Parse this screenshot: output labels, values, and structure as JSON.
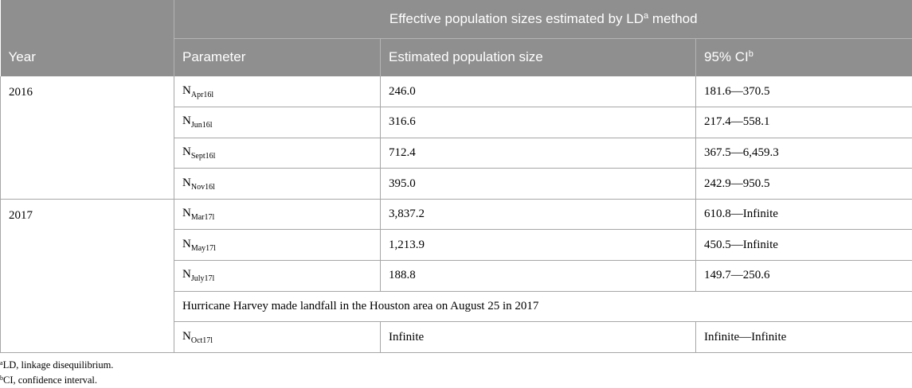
{
  "table": {
    "super_header": {
      "text": "Effective population sizes estimated by LD",
      "sup": "a",
      "suffix": " method"
    },
    "columns": {
      "year": "Year",
      "parameter": "Parameter",
      "estimated": "Estimated population size",
      "ci": "95% CI",
      "ci_sup": "b"
    },
    "groups": [
      {
        "year": "2016",
        "rows": [
          {
            "param_base": "N",
            "param_sub": "Apr16l",
            "estimate": "246.0",
            "ci": "181.6—370.5"
          },
          {
            "param_base": "N",
            "param_sub": "Jun16l",
            "estimate": "316.6",
            "ci": "217.4—558.1"
          },
          {
            "param_base": "N",
            "param_sub": "Sept16l",
            "estimate": "712.4",
            "ci": "367.5—6,459.3"
          },
          {
            "param_base": "N",
            "param_sub": "Nov16l",
            "estimate": "395.0",
            "ci": "242.9—950.5"
          }
        ]
      },
      {
        "year": "2017",
        "rows": [
          {
            "param_base": "N",
            "param_sub": "Mar17l",
            "estimate": "3,837.2",
            "ci": "610.8—Infinite"
          },
          {
            "param_base": "N",
            "param_sub": "May17l",
            "estimate": "1,213.9",
            "ci": "450.5—Infinite"
          },
          {
            "param_base": "N",
            "param_sub": "July17l",
            "estimate": "188.8",
            "ci": "149.7—250.6"
          }
        ],
        "note": "Hurricane Harvey made landfall in the Houston area on August 25 in 2017",
        "after_note": {
          "param_base": "N",
          "param_sub": "Oct17l",
          "estimate": "Infinite",
          "ci": "Infinite—Infinite"
        }
      }
    ]
  },
  "footnotes": [
    {
      "sup": "a",
      "text": "LD, linkage disequilibrium."
    },
    {
      "sup": "b",
      "text": "CI, confidence interval."
    }
  ]
}
